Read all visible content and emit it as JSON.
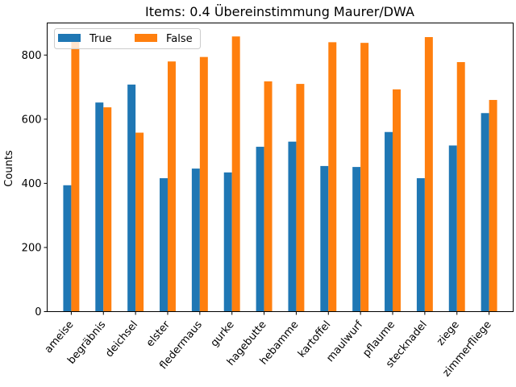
{
  "chart_data": {
    "type": "bar",
    "title": "Items: 0.4 Übereinstimmung Maurer/DWA",
    "xlabel": "",
    "ylabel": "Counts",
    "ylim": [
      0,
      900
    ],
    "yticks": [
      0,
      200,
      400,
      600,
      800
    ],
    "grid": false,
    "legend_position": "top-left",
    "categories": [
      "ameise",
      "begräbnis",
      "deichsel",
      "elster",
      "fledermaus",
      "gurke",
      "hagebutte",
      "hebamme",
      "kartoffel",
      "maulwurf",
      "pflaume",
      "stecknadel",
      "ziege",
      "zimmerfliege"
    ],
    "series": [
      {
        "name": "True",
        "color": "#1f77b4",
        "values": [
          394,
          652,
          708,
          416,
          446,
          434,
          514,
          530,
          454,
          451,
          560,
          416,
          518,
          619
        ]
      },
      {
        "name": "False",
        "color": "#ff7f0e",
        "values": [
          866,
          637,
          558,
          780,
          794,
          858,
          718,
          710,
          840,
          838,
          693,
          856,
          778,
          660
        ]
      }
    ]
  }
}
